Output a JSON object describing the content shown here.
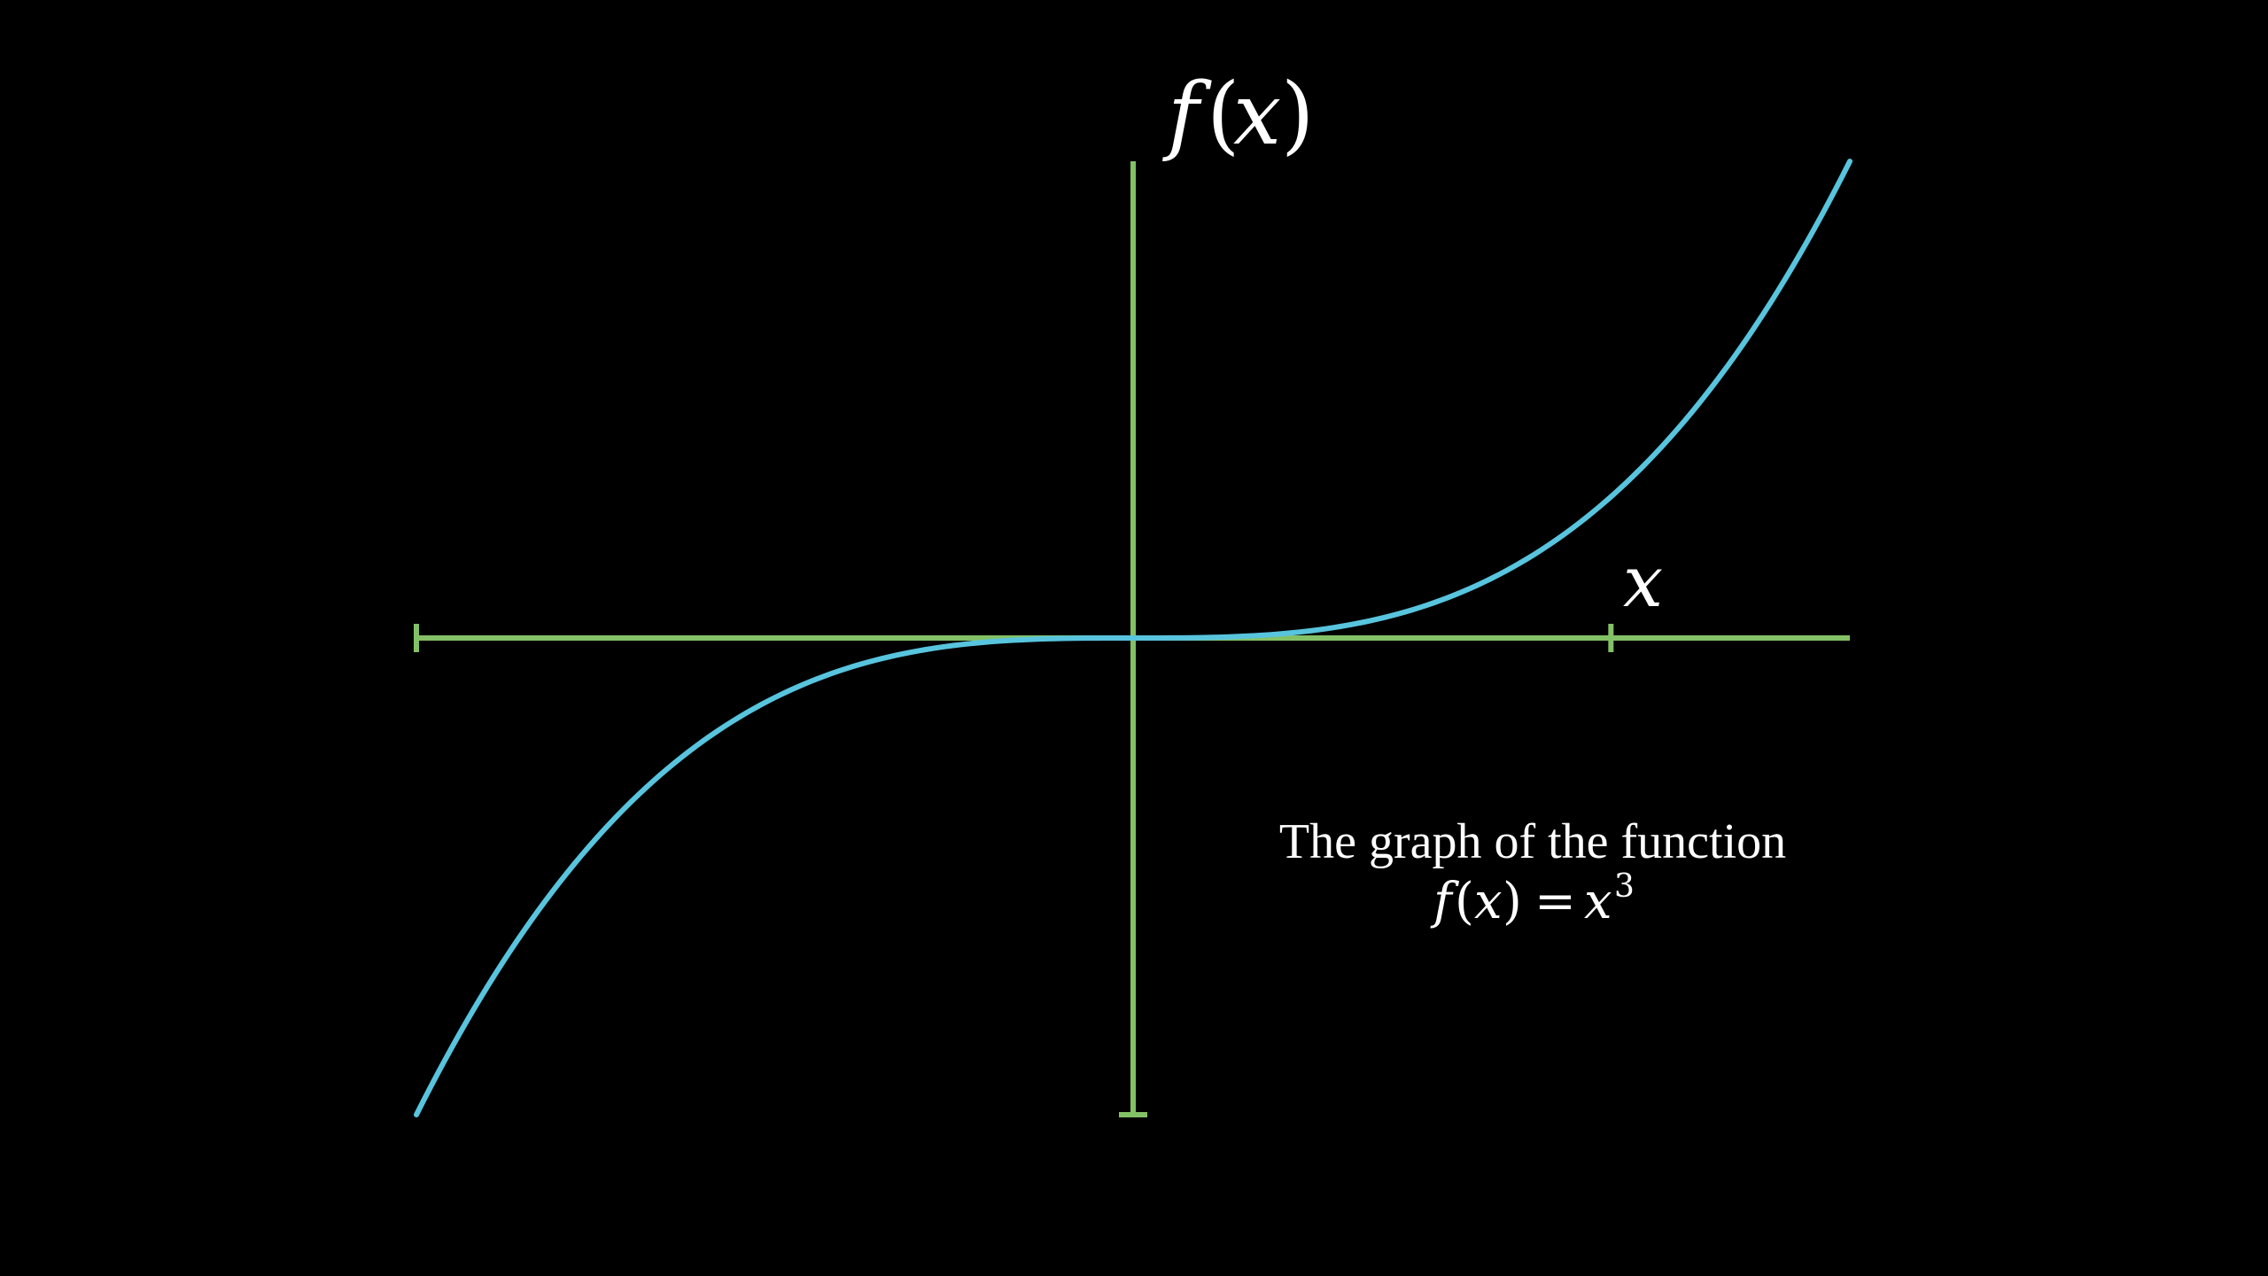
{
  "chart_data": {
    "type": "line",
    "function": "x^3",
    "x_range": [
      -1.5,
      1.5
    ],
    "y_range": [
      -1,
      1
    ],
    "x_ticks": [
      -1.5,
      1
    ],
    "y_ticks": [
      -1
    ],
    "xlabel": "x",
    "ylabel": "f(x)",
    "caption_line1": "The graph of the function",
    "caption_line2": "f(x) = x^3",
    "grid": false,
    "series": [
      {
        "name": "",
        "samples": 200
      }
    ]
  },
  "colors": {
    "background": "#000000",
    "axis": "#83c167",
    "curve": "#58c4dd",
    "text": "#ffffff"
  }
}
